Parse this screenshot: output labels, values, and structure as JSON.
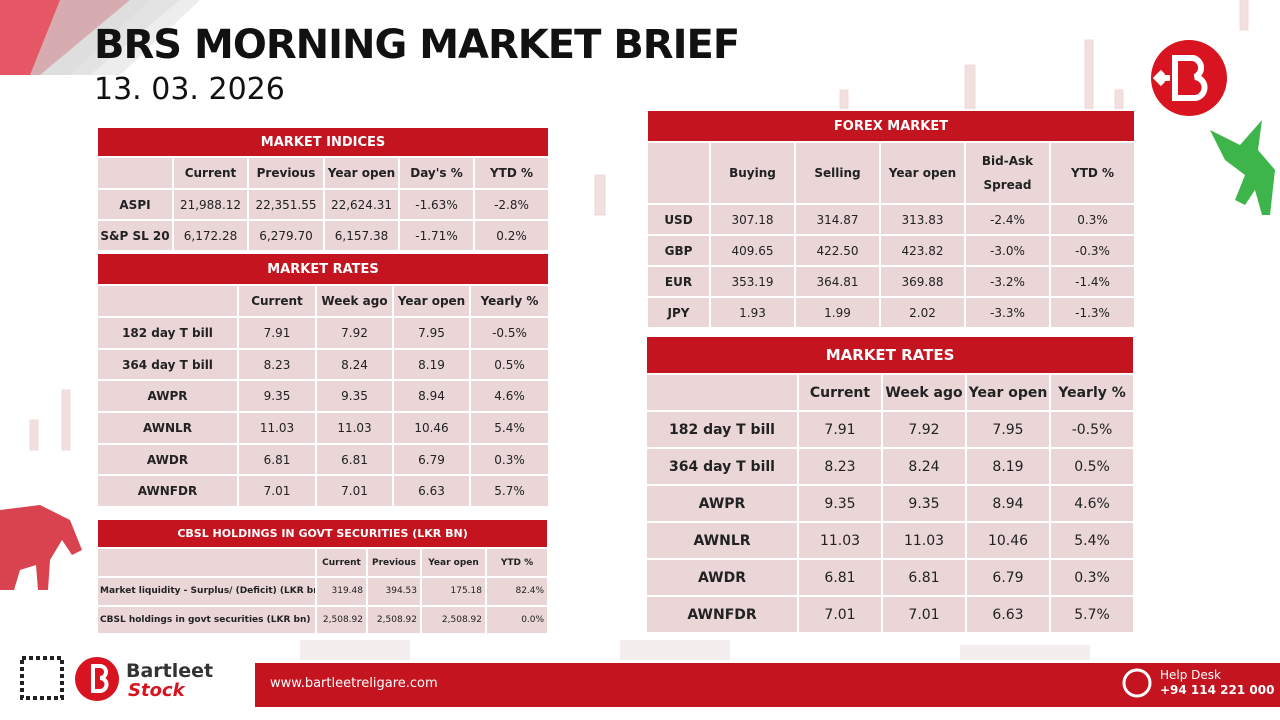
{
  "header": {
    "title": "BRS MORNING MARKET BRIEF",
    "date": "13. 03. 2026"
  },
  "tables": {
    "market_indices": {
      "title": "MARKET INDICES",
      "columns": [
        "Current",
        "Previous",
        "Year open",
        "Day's %",
        "YTD %"
      ],
      "rows": [
        [
          "ASPI",
          "21,988.12",
          "22,351.55",
          "22,624.31",
          "-1.63%",
          "-2.8%"
        ],
        [
          "S&P SL 20",
          "6,172.28",
          "6,279.70",
          "6,157.38",
          "-1.71%",
          "0.2%"
        ]
      ]
    },
    "market_rates_left": {
      "title": "MARKET RATES",
      "columns": [
        "Current",
        "Week ago",
        "Year open",
        "Yearly %"
      ],
      "rows": [
        [
          "182 day T bill",
          "7.91",
          "7.92",
          "7.95",
          "-0.5%"
        ],
        [
          "364 day T bill",
          "8.23",
          "8.24",
          "8.19",
          "0.5%"
        ],
        [
          "AWPR",
          "9.35",
          "9.35",
          "8.94",
          "4.6%"
        ],
        [
          "AWNLR",
          "11.03",
          "11.03",
          "10.46",
          "5.4%"
        ],
        [
          "AWDR",
          "6.81",
          "6.81",
          "6.79",
          "0.3%"
        ],
        [
          "AWNFDR",
          "7.01",
          "7.01",
          "6.63",
          "5.7%"
        ]
      ]
    },
    "cbsl_holdings": {
      "title": "CBSL HOLDINGS IN GOVT SECURITIES (LKR BN)",
      "columns": [
        "Current",
        "Previous",
        "Year open",
        "YTD %"
      ],
      "rows": [
        [
          "Market liquidity - Surplus/ (Deficit) (LKR bn)",
          "319.48",
          "394.53",
          "175.18",
          "82.4%"
        ],
        [
          "CBSL holdings in govt securities (LKR bn)",
          "2,508.92",
          "2,508.92",
          "2,508.92",
          "0.0%"
        ]
      ]
    },
    "forex_market": {
      "title": "FOREX MARKET",
      "columns": [
        "Buying",
        "Selling",
        "Year open",
        "Bid-Ask Spread",
        "YTD %"
      ],
      "rows": [
        [
          "USD",
          "307.18",
          "314.87",
          "313.83",
          "-2.4%",
          "0.3%"
        ],
        [
          "GBP",
          "409.65",
          "422.50",
          "423.82",
          "-3.0%",
          "-0.3%"
        ],
        [
          "EUR",
          "353.19",
          "364.81",
          "369.88",
          "-3.2%",
          "-1.4%"
        ],
        [
          "JPY",
          "1.93",
          "1.99",
          "2.02",
          "-3.3%",
          "-1.3%"
        ]
      ]
    },
    "market_rates_right": {
      "title": "MARKET RATES",
      "columns": [
        "Current",
        "Week ago",
        "Year open",
        "Yearly %"
      ],
      "rows": [
        [
          "182 day T bill",
          "7.91",
          "7.92",
          "7.95",
          "-0.5%"
        ],
        [
          "364 day T bill",
          "8.23",
          "8.24",
          "8.19",
          "0.5%"
        ],
        [
          "AWPR",
          "9.35",
          "9.35",
          "8.94",
          "4.6%"
        ],
        [
          "AWNLR",
          "11.03",
          "11.03",
          "10.46",
          "5.4%"
        ],
        [
          "AWDR",
          "6.81",
          "6.81",
          "6.79",
          "0.3%"
        ],
        [
          "AWNFDR",
          "7.01",
          "7.01",
          "6.63",
          "5.7%"
        ]
      ]
    }
  },
  "footer": {
    "brand": "Bartleet",
    "brand_sub": "Stock",
    "website": "www.bartleetreligare.com",
    "help_label": "Help Desk",
    "help_phone": "+94 114 221 000"
  }
}
